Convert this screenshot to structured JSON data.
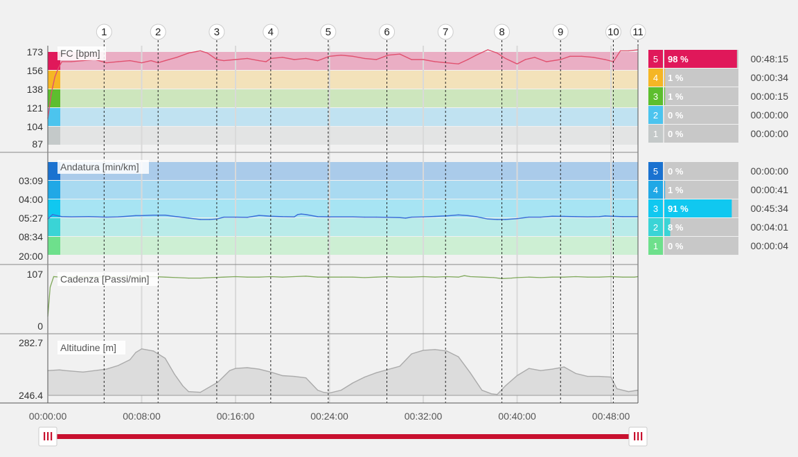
{
  "time_axis": {
    "min_min": 0,
    "max_min": 50.3,
    "ticks": [
      {
        "v": 0,
        "label": "00:00:00"
      },
      {
        "v": 8,
        "label": "00:08:00"
      },
      {
        "v": 16,
        "label": "00:16:00"
      },
      {
        "v": 24,
        "label": "00:24:00"
      },
      {
        "v": 32,
        "label": "00:32:00"
      },
      {
        "v": 40,
        "label": "00:40:00"
      },
      {
        "v": 48,
        "label": "00:48:00"
      }
    ]
  },
  "laps": [
    {
      "label": "1",
      "t": 4.8
    },
    {
      "label": "2",
      "t": 9.4
    },
    {
      "label": "3",
      "t": 14.4
    },
    {
      "label": "4",
      "t": 19.0
    },
    {
      "label": "5",
      "t": 23.9
    },
    {
      "label": "6",
      "t": 28.9
    },
    {
      "label": "7",
      "t": 33.9
    },
    {
      "label": "8",
      "t": 38.7
    },
    {
      "label": "9",
      "t": 43.7
    },
    {
      "label": "10",
      "t": 48.2
    },
    {
      "label": "11",
      "t": 50.3
    }
  ],
  "colors": {
    "hr_line": "#e0506e",
    "pace_line": "#3b6fd8",
    "cad_line": "#7fa85a",
    "alt_line": "#aaaaaa",
    "slider": "#c8102e"
  },
  "chart_data": [
    {
      "type": "line",
      "panel": "hr",
      "title": "FC [bpm]",
      "y_ticks": [
        "173",
        "156",
        "138",
        "121",
        "104",
        "87"
      ],
      "ylim": [
        87,
        173
      ],
      "zones": [
        {
          "zone": "5",
          "pct": "98 %",
          "time": "00:48:15",
          "color": "#e0185a",
          "band": "#eaaec4",
          "pct_value": 98
        },
        {
          "zone": "4",
          "pct": "1 %",
          "time": "00:00:34",
          "color": "#f5b625",
          "band": "#f3e2ba",
          "pct_value": 1
        },
        {
          "zone": "3",
          "pct": "1 %",
          "time": "00:00:15",
          "color": "#5dbe2e",
          "band": "#cde6bd",
          "pct_value": 1
        },
        {
          "zone": "2",
          "pct": "0 %",
          "time": "00:00:00",
          "color": "#4cc4ee",
          "band": "#c0e2f1",
          "pct_value": 0
        },
        {
          "zone": "1",
          "pct": "0 %",
          "time": "00:00:00",
          "color": "#c4c9c9",
          "band": "#e3e4e4",
          "pct_value": 0
        }
      ],
      "x": [
        0,
        0.3,
        0.6,
        0.9,
        1.2,
        2,
        3,
        4,
        5,
        6,
        7,
        8,
        8.8,
        9.4,
        10,
        11,
        12,
        13,
        13.6,
        14.4,
        15,
        16,
        17,
        18,
        18.6,
        19,
        20,
        21,
        22,
        23,
        24,
        25,
        26,
        27,
        28,
        29,
        30,
        31,
        32,
        33,
        34,
        35,
        35.8,
        36.5,
        37.5,
        38.3,
        39,
        40,
        40.7,
        41.5,
        42.5,
        43.7,
        44.5,
        45.5,
        46.5,
        47.5,
        48.2,
        48.8,
        49.5,
        50.3
      ],
      "y": [
        112,
        135,
        150,
        158,
        164,
        164,
        165,
        166,
        163,
        164,
        165,
        163,
        165,
        163,
        165,
        168,
        172,
        174,
        172,
        166,
        165,
        166,
        167,
        165,
        164,
        167,
        168,
        166,
        167,
        165,
        169,
        170,
        169,
        167,
        166,
        170,
        171,
        166,
        166,
        164,
        163,
        162,
        166,
        170,
        175,
        172,
        167,
        162,
        166,
        168,
        164,
        166,
        169,
        169,
        168,
        166,
        164,
        174,
        174,
        175
      ]
    },
    {
      "type": "line",
      "panel": "pace",
      "title": "Andatura [min/km]",
      "y_ticks": [
        "03:09",
        "04:00",
        "05:27",
        "08:34",
        "20:00"
      ],
      "zones": [
        {
          "zone": "5",
          "pct": "0 %",
          "time": "00:00:00",
          "color": "#1a72d0",
          "band": "#aacbea",
          "pct_value": 0
        },
        {
          "zone": "4",
          "pct": "1 %",
          "time": "00:00:41",
          "color": "#20a8e6",
          "band": "#a9daf1",
          "pct_value": 1
        },
        {
          "zone": "3",
          "pct": "91 %",
          "time": "00:45:34",
          "color": "#10c8f0",
          "band": "#a7e4f3",
          "pct_value": 91
        },
        {
          "zone": "2",
          "pct": "8 %",
          "time": "00:04:01",
          "color": "#3ad4d6",
          "band": "#b9ebe9",
          "pct_value": 8
        },
        {
          "zone": "1",
          "pct": "0 %",
          "time": "00:00:04",
          "color": "#6ee08c",
          "band": "#cdefd3",
          "pct_value": 0
        }
      ],
      "x": [
        0,
        0.4,
        1.2,
        2,
        3.5,
        5,
        6,
        7.5,
        8,
        9,
        10,
        11,
        12,
        13,
        13.8,
        14.4,
        15,
        16,
        17,
        18,
        19,
        20,
        21,
        21.3,
        21.6,
        22,
        23,
        24,
        25,
        26,
        27,
        28,
        29,
        30,
        30.5,
        31,
        32,
        33,
        34,
        35,
        35.8,
        36.5,
        37.5,
        38.3,
        39,
        40,
        41,
        42,
        43,
        44,
        45,
        46,
        47,
        47.5,
        48,
        49,
        50.3
      ],
      "y": [
        5.55,
        5.1,
        5.3,
        5.32,
        5.3,
        5.35,
        5.33,
        5.2,
        5.2,
        5.15,
        5.15,
        5.3,
        5.45,
        5.6,
        5.6,
        5.55,
        5.35,
        5.35,
        5.37,
        5.18,
        5.25,
        5.3,
        5.32,
        5.1,
        5.05,
        5.1,
        5.3,
        5.32,
        5.32,
        5.33,
        5.35,
        5.35,
        5.37,
        5.4,
        5.45,
        5.35,
        5.32,
        5.27,
        5.22,
        5.13,
        5.2,
        5.3,
        5.55,
        5.6,
        5.6,
        5.5,
        5.35,
        5.35,
        5.25,
        5.27,
        5.3,
        5.33,
        5.3,
        5.23,
        5.25,
        5.3,
        5.3
      ]
    },
    {
      "type": "line",
      "panel": "cadence",
      "title": "Cadenza [Passi/min]",
      "y_ticks": [
        "107",
        "0"
      ],
      "ylim": [
        0,
        107
      ],
      "x": [
        0,
        0.2,
        0.5,
        1,
        2,
        3,
        4,
        5,
        6,
        7,
        8,
        9,
        10,
        11,
        12,
        13,
        14,
        15,
        16,
        17,
        18,
        19,
        20,
        21,
        22,
        23,
        24,
        25,
        26,
        27,
        28,
        29,
        30,
        31,
        32,
        33,
        34,
        35,
        35.5,
        36,
        37,
        38,
        38.7,
        39.5,
        40,
        41,
        42,
        43,
        44,
        45,
        46,
        47,
        48,
        49,
        50,
        50.3
      ],
      "y": [
        20,
        80,
        102,
        101,
        101,
        102,
        101,
        102,
        101,
        102,
        101,
        102,
        101,
        100,
        99,
        99,
        100,
        101,
        102,
        101,
        101,
        102,
        101,
        102,
        103,
        101,
        101,
        101,
        101,
        100,
        101,
        102,
        101,
        101,
        102,
        101,
        102,
        101,
        104,
        102,
        101,
        100,
        98,
        99,
        100,
        101,
        100,
        101,
        101,
        102,
        101,
        101,
        102,
        101,
        101,
        102
      ]
    },
    {
      "type": "area",
      "panel": "altitude",
      "title": "Altitudine [m]",
      "y_ticks": [
        "282.7",
        "246.4"
      ],
      "ylim": [
        246.4,
        282.7
      ],
      "x": [
        0,
        1,
        1.5,
        3,
        5,
        6,
        7,
        7.5,
        8,
        9,
        10,
        10.8,
        11.5,
        12,
        13,
        14.5,
        15.5,
        16,
        17,
        18,
        19,
        20,
        21,
        22,
        23,
        23.5,
        24,
        25,
        26,
        27,
        28,
        30,
        31,
        32,
        33,
        34,
        35,
        36,
        37,
        37.8,
        38.3,
        39,
        40,
        41,
        42,
        43,
        44,
        45,
        46,
        47,
        48,
        48.5,
        49.5,
        50.3
      ],
      "y": [
        263.5,
        264,
        263.5,
        262.5,
        264.5,
        267,
        271,
        276,
        278.5,
        277,
        272,
        261,
        253,
        249,
        248.5,
        255.5,
        263.5,
        265,
        265.5,
        264.5,
        262.5,
        260,
        259.5,
        258.5,
        250,
        248.5,
        248,
        250,
        255,
        259,
        262,
        266.5,
        275,
        277.5,
        278,
        277,
        273,
        262,
        250,
        247.5,
        247,
        253,
        260,
        265,
        263.5,
        264.5,
        266,
        261.5,
        259.5,
        259.5,
        259,
        251,
        249,
        250
      ]
    }
  ]
}
